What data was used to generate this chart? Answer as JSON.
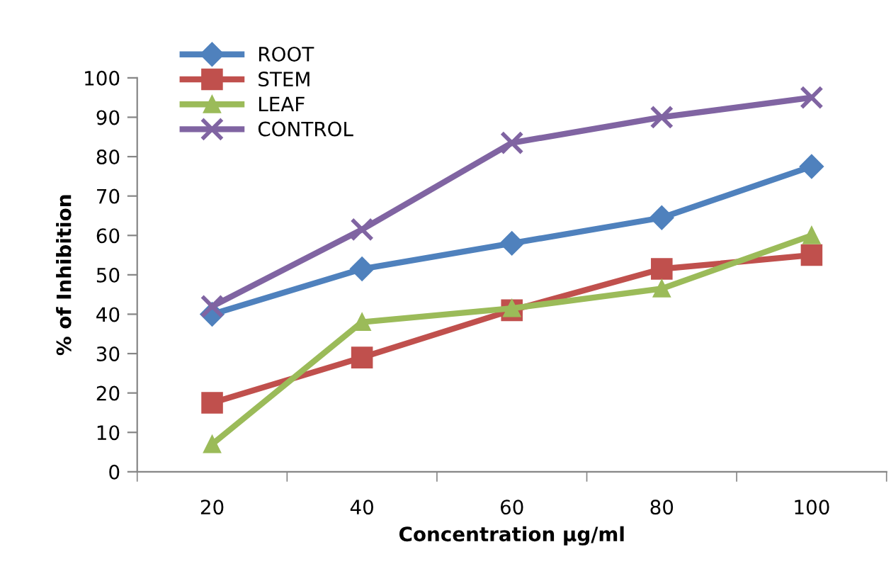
{
  "chart_data": {
    "type": "line",
    "xlabel": "Concentration µg/ml",
    "ylabel": "% of Inhibition",
    "categories": [
      "20",
      "40",
      "60",
      "80",
      "100"
    ],
    "series": [
      {
        "name": "ROOT",
        "color": "#4f81bd",
        "marker": "diamond",
        "values": [
          40,
          51.5,
          58,
          64.5,
          77.5
        ]
      },
      {
        "name": "STEM",
        "color": "#c0504d",
        "marker": "square",
        "values": [
          17.5,
          29,
          41,
          51.5,
          55
        ]
      },
      {
        "name": "LEAF",
        "color": "#9bbb59",
        "marker": "triangle",
        "values": [
          7,
          38,
          41.5,
          46.5,
          60
        ]
      },
      {
        "name": "CONTROL",
        "color": "#8064a2",
        "marker": "cross",
        "values": [
          42,
          61.5,
          83.5,
          90,
          95
        ]
      }
    ],
    "ylim": [
      0,
      100
    ],
    "yticks": [
      0,
      10,
      20,
      30,
      40,
      50,
      60,
      70,
      80,
      90,
      100
    ],
    "grid": false,
    "legend": "top left",
    "line_style": "solid"
  }
}
